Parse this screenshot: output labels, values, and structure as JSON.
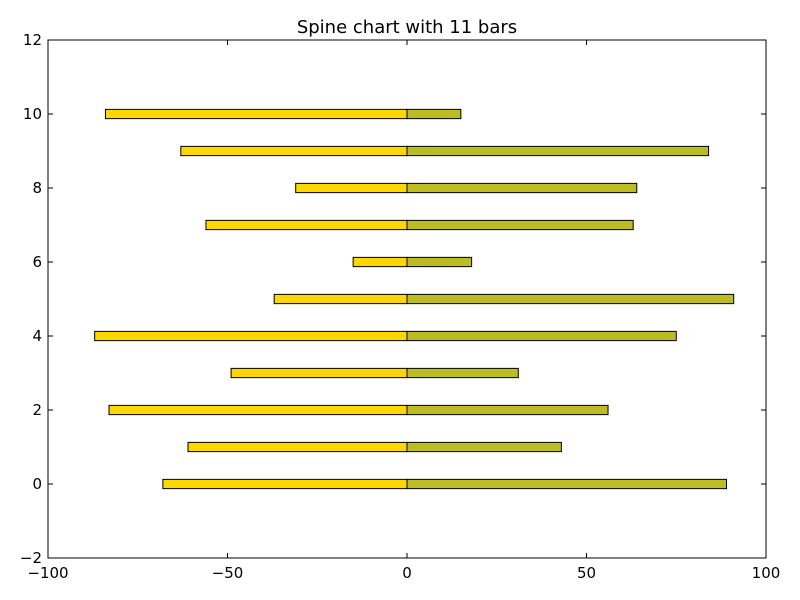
{
  "chart_data": {
    "type": "bar",
    "orientation": "horizontal-diverging",
    "title": "Spine chart with 11 bars",
    "xlabel": "",
    "ylabel": "",
    "xlim": [
      -100,
      100
    ],
    "ylim": [
      -2,
      12
    ],
    "xticks": [
      -100,
      -50,
      0,
      50,
      100
    ],
    "yticks": [
      -2,
      0,
      2,
      4,
      6,
      8,
      10,
      12
    ],
    "grid": false,
    "y": [
      0,
      1,
      2,
      3,
      4,
      5,
      6,
      7,
      8,
      9,
      10
    ],
    "series": [
      {
        "color": "#ffd700",
        "values": [
          -68,
          -61,
          -83,
          -49,
          -87,
          -37,
          -15,
          -56,
          -31,
          -63,
          -84
        ]
      },
      {
        "color": "#bcbd22",
        "values": [
          89,
          43,
          56,
          31,
          75,
          91,
          18,
          63,
          64,
          84,
          15
        ]
      }
    ]
  }
}
